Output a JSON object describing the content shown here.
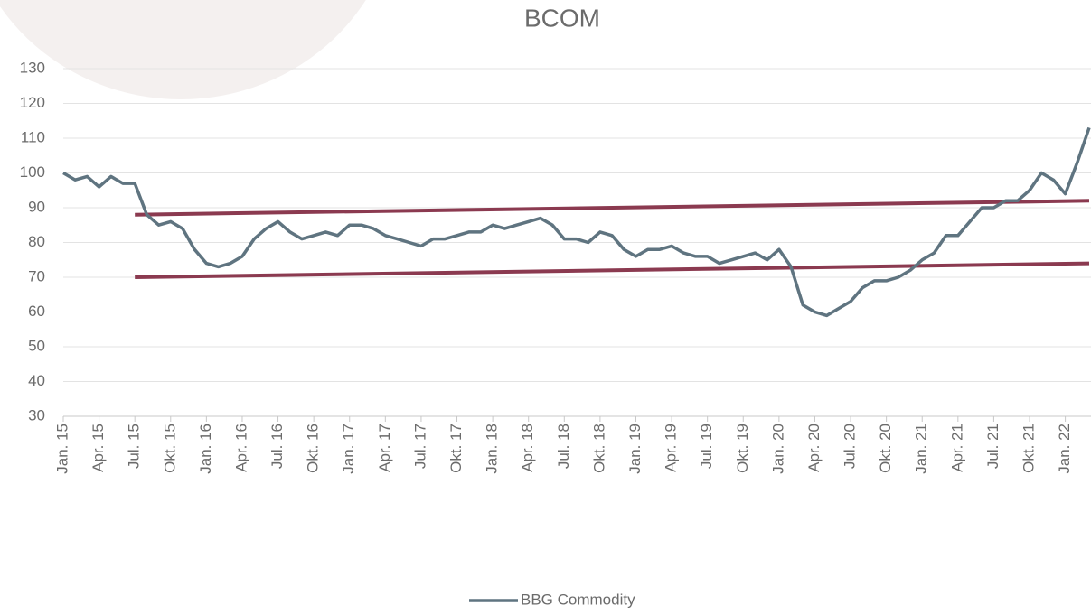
{
  "chart_data": {
    "type": "line",
    "title": "BCOM",
    "categories": [
      "Jan. 15",
      null,
      null,
      "Apr. 15",
      null,
      null,
      "Jul. 15",
      null,
      null,
      "Okt. 15",
      null,
      null,
      "Jan. 16",
      null,
      null,
      "Apr. 16",
      null,
      null,
      "Jul. 16",
      null,
      null,
      "Okt. 16",
      null,
      null,
      "Jan. 17",
      null,
      null,
      "Apr. 17",
      null,
      null,
      "Jul. 17",
      null,
      null,
      "Okt. 17",
      null,
      null,
      "Jan. 18",
      null,
      null,
      "Apr. 18",
      null,
      null,
      "Jul. 18",
      null,
      null,
      "Okt. 18",
      null,
      null,
      "Jan. 19",
      null,
      null,
      "Apr. 19",
      null,
      null,
      "Jul. 19",
      null,
      null,
      "Okt. 19",
      null,
      null,
      "Jan. 20",
      null,
      null,
      "Apr. 20",
      null,
      null,
      "Jul. 20",
      null,
      null,
      "Okt. 20",
      null,
      null,
      "Jan. 21",
      null,
      null,
      "Apr. 21",
      null,
      null,
      "Jul. 21",
      null,
      null,
      "Okt. 21",
      null,
      null,
      "Jan. 22",
      null,
      null
    ],
    "series": [
      {
        "name": "BBG Commodity",
        "color": "#5f7480",
        "values": [
          100,
          98,
          99,
          96,
          99,
          97,
          97,
          88,
          85,
          86,
          84,
          78,
          74,
          73,
          74,
          76,
          81,
          84,
          86,
          83,
          81,
          82,
          83,
          82,
          85,
          85,
          84,
          82,
          81,
          80,
          79,
          81,
          81,
          82,
          83,
          83,
          85,
          84,
          85,
          86,
          87,
          85,
          81,
          81,
          80,
          83,
          82,
          78,
          76,
          78,
          78,
          79,
          77,
          76,
          76,
          74,
          75,
          76,
          77,
          75,
          78,
          73,
          62,
          60,
          59,
          61,
          63,
          67,
          69,
          69,
          70,
          72,
          75,
          77,
          82,
          82,
          86,
          90,
          90,
          92,
          92,
          95,
          100,
          98,
          94,
          103,
          113
        ]
      }
    ],
    "trend_lines": [
      {
        "color": "#8b3a50",
        "x": [
          6,
          86
        ],
        "values": [
          88,
          92
        ]
      },
      {
        "color": "#8b3a50",
        "x": [
          6,
          86
        ],
        "values": [
          70,
          74
        ]
      }
    ],
    "ylim": [
      30,
      130
    ],
    "yticks": [
      30,
      40,
      50,
      60,
      70,
      80,
      90,
      100,
      110,
      120,
      130
    ],
    "grid": true,
    "legend": "bottom"
  }
}
